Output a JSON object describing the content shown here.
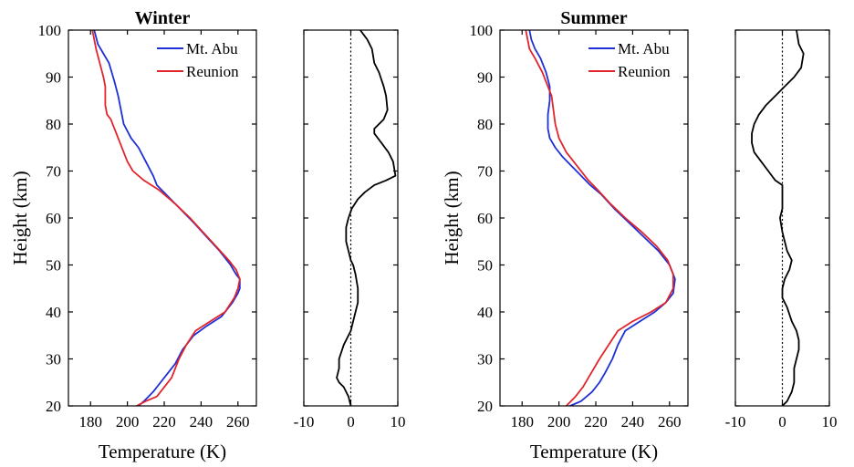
{
  "figure": {
    "ylabel": "Height (km)",
    "xlabel": "Temperature (K)"
  },
  "chart_data": [
    {
      "type": "line",
      "title": "Winter",
      "xlabel": "Temperature (K)",
      "ylabel": "Height (km)",
      "xlim": [
        168,
        270
      ],
      "ylim": [
        20,
        100
      ],
      "xticks": [
        180,
        200,
        220,
        240,
        260
      ],
      "yticks": [
        20,
        30,
        40,
        50,
        60,
        70,
        80,
        90,
        100
      ],
      "grid": false,
      "legend_position": "top-right",
      "series": [
        {
          "name": "Mt. Abu",
          "color": "#1f2fd6",
          "points": [
            [
              182,
              100
            ],
            [
              184,
              97
            ],
            [
              187,
              95
            ],
            [
              190,
              93
            ],
            [
              193,
              89
            ],
            [
              195,
              86
            ],
            [
              196,
              84
            ],
            [
              197,
              82
            ],
            [
              198,
              80
            ],
            [
              202,
              77
            ],
            [
              206,
              75
            ],
            [
              210,
              72
            ],
            [
              214,
              69
            ],
            [
              216,
              67
            ],
            [
              221,
              65
            ],
            [
              226,
              63
            ],
            [
              236,
              59
            ],
            [
              243,
              56
            ],
            [
              250,
              53
            ],
            [
              256,
              50
            ],
            [
              259,
              48
            ],
            [
              261,
              47
            ],
            [
              261,
              45
            ],
            [
              260,
              44
            ],
            [
              257,
              42
            ],
            [
              251,
              39
            ],
            [
              243,
              37
            ],
            [
              236,
              35
            ],
            [
              230,
              32
            ],
            [
              226,
              29
            ],
            [
              222,
              27
            ],
            [
              218,
              25
            ],
            [
              214,
              23
            ],
            [
              209,
              21
            ],
            [
              206,
              20
            ]
          ]
        },
        {
          "name": "Reunion",
          "color": "#e0252b",
          "points": [
            [
              181,
              100
            ],
            [
              182,
              98
            ],
            [
              183,
              96
            ],
            [
              185,
              93
            ],
            [
              187,
              90
            ],
            [
              188,
              88
            ],
            [
              188,
              86
            ],
            [
              188,
              84
            ],
            [
              189,
              82
            ],
            [
              191,
              81
            ],
            [
              193,
              79
            ],
            [
              196,
              76
            ],
            [
              198,
              74
            ],
            [
              200,
              72
            ],
            [
              203,
              70
            ],
            [
              209,
              68
            ],
            [
              217,
              66
            ],
            [
              226,
              63
            ],
            [
              234,
              60
            ],
            [
              241,
              57
            ],
            [
              248,
              54
            ],
            [
              255,
              51
            ],
            [
              259,
              49
            ],
            [
              261,
              47
            ],
            [
              260,
              45
            ],
            [
              258,
              43
            ],
            [
              253,
              40
            ],
            [
              245,
              38
            ],
            [
              237,
              36
            ],
            [
              232,
              33
            ],
            [
              228,
              30
            ],
            [
              226,
              28
            ],
            [
              224,
              26
            ],
            [
              220,
              24
            ],
            [
              216,
              22
            ],
            [
              210,
              21
            ],
            [
              205,
              20
            ]
          ]
        }
      ]
    },
    {
      "type": "line",
      "title": "",
      "xlim": [
        -10,
        10
      ],
      "ylim": [
        20,
        100
      ],
      "xticks": [
        -10,
        0,
        10
      ],
      "reference_line_x": 0,
      "series": [
        {
          "name": "",
          "color": "#000000",
          "points": [
            [
              2,
              100
            ],
            [
              3.5,
              98
            ],
            [
              4.5,
              96
            ],
            [
              5,
              93
            ],
            [
              6,
              91
            ],
            [
              7,
              88
            ],
            [
              7.5,
              86
            ],
            [
              7.8,
              83
            ],
            [
              7,
              81
            ],
            [
              5,
              79
            ],
            [
              5,
              78
            ],
            [
              6.5,
              76
            ],
            [
              8,
              74
            ],
            [
              9,
              72
            ],
            [
              9.5,
              69
            ],
            [
              7.5,
              68
            ],
            [
              5,
              67
            ],
            [
              3,
              65.5
            ],
            [
              1.5,
              64
            ],
            [
              0.2,
              62
            ],
            [
              -0.5,
              60
            ],
            [
              -1,
              58
            ],
            [
              -1,
              55
            ],
            [
              -0.5,
              53
            ],
            [
              0,
              51
            ],
            [
              0.5,
              50
            ],
            [
              1,
              48
            ],
            [
              1.5,
              45
            ],
            [
              1.5,
              42
            ],
            [
              1,
              40
            ],
            [
              0.5,
              38
            ],
            [
              0,
              36
            ],
            [
              -1.5,
              33
            ],
            [
              -2.5,
              30
            ],
            [
              -2.5,
              28
            ],
            [
              -3,
              26
            ],
            [
              -2.5,
              25
            ],
            [
              -1.5,
              24
            ],
            [
              -0.5,
              22
            ],
            [
              0,
              20
            ]
          ]
        }
      ]
    },
    {
      "type": "line",
      "title": "Summer",
      "xlabel": "Temperature (K)",
      "ylabel": "Height (km)",
      "xlim": [
        168,
        270
      ],
      "ylim": [
        20,
        100
      ],
      "xticks": [
        180,
        200,
        220,
        240,
        260
      ],
      "yticks": [
        20,
        30,
        40,
        50,
        60,
        70,
        80,
        90,
        100
      ],
      "grid": false,
      "legend_position": "top-right",
      "series": [
        {
          "name": "Mt. Abu",
          "color": "#1f2fd6",
          "points": [
            [
              184,
              100
            ],
            [
              185,
              98
            ],
            [
              187,
              96
            ],
            [
              190,
              94
            ],
            [
              193,
              91
            ],
            [
              195,
              88
            ],
            [
              195,
              85
            ],
            [
              194,
              82
            ],
            [
              194,
              79
            ],
            [
              195,
              77
            ],
            [
              198,
              75
            ],
            [
              202,
              73
            ],
            [
              207,
              71
            ],
            [
              212,
              69
            ],
            [
              217,
              67
            ],
            [
              223,
              65
            ],
            [
              230,
              62
            ],
            [
              238,
              59
            ],
            [
              246,
              56
            ],
            [
              254,
              53
            ],
            [
              260,
              50
            ],
            [
              263,
              47
            ],
            [
              262,
              44
            ],
            [
              258,
              42
            ],
            [
              252,
              40
            ],
            [
              244,
              38
            ],
            [
              236,
              36
            ],
            [
              232,
              33
            ],
            [
              229,
              30
            ],
            [
              225,
              27
            ],
            [
              222,
              25
            ],
            [
              218,
              23
            ],
            [
              212,
              21
            ],
            [
              206,
              20
            ]
          ]
        },
        {
          "name": "Reunion",
          "color": "#e0252b",
          "points": [
            [
              182,
              100
            ],
            [
              183,
              98
            ],
            [
              184,
              96
            ],
            [
              187,
              94
            ],
            [
              191,
              91
            ],
            [
              194,
              88
            ],
            [
              196,
              86
            ],
            [
              197,
              83
            ],
            [
              198,
              80
            ],
            [
              200,
              77
            ],
            [
              204,
              74
            ],
            [
              208,
              72
            ],
            [
              212,
              70
            ],
            [
              216,
              68
            ],
            [
              221,
              66
            ],
            [
              228,
              63
            ],
            [
              236,
              60
            ],
            [
              245,
              57
            ],
            [
              253,
              54
            ],
            [
              259,
              51
            ],
            [
              262,
              48
            ],
            [
              262,
              45
            ],
            [
              258,
              42
            ],
            [
              250,
              40
            ],
            [
              240,
              38
            ],
            [
              232,
              36
            ],
            [
              227,
              33
            ],
            [
              222,
              30
            ],
            [
              219,
              28
            ],
            [
              216,
              26
            ],
            [
              213,
              24
            ],
            [
              209,
              22
            ],
            [
              204,
              20
            ]
          ]
        }
      ]
    },
    {
      "type": "line",
      "title": "",
      "xlim": [
        -10,
        10
      ],
      "ylim": [
        20,
        100
      ],
      "xticks": [
        -10,
        0,
        10
      ],
      "reference_line_x": 0,
      "series": [
        {
          "name": "",
          "color": "#000000",
          "points": [
            [
              3,
              100
            ],
            [
              3.5,
              97
            ],
            [
              4.5,
              95
            ],
            [
              4,
              92
            ],
            [
              2.5,
              90
            ],
            [
              0.5,
              88
            ],
            [
              -1.5,
              86
            ],
            [
              -3.5,
              84
            ],
            [
              -5,
              82
            ],
            [
              -6,
              80
            ],
            [
              -6.5,
              78
            ],
            [
              -6.5,
              76
            ],
            [
              -6,
              74
            ],
            [
              -4.5,
              72
            ],
            [
              -3,
              70
            ],
            [
              -1.5,
              68
            ],
            [
              0,
              67
            ],
            [
              0,
              65
            ],
            [
              0,
              62
            ],
            [
              -0.5,
              60
            ],
            [
              0,
              57
            ],
            [
              0.5,
              55
            ],
            [
              1,
              53
            ],
            [
              2,
              51
            ],
            [
              1.5,
              49
            ],
            [
              0.5,
              47
            ],
            [
              0,
              45
            ],
            [
              0,
              43
            ],
            [
              1,
              41
            ],
            [
              2,
              38
            ],
            [
              3,
              36
            ],
            [
              3.5,
              34
            ],
            [
              3.5,
              32
            ],
            [
              3,
              30
            ],
            [
              2.5,
              28
            ],
            [
              2.5,
              25
            ],
            [
              2,
              23
            ],
            [
              1,
              21
            ],
            [
              0,
              20
            ]
          ]
        }
      ]
    }
  ]
}
